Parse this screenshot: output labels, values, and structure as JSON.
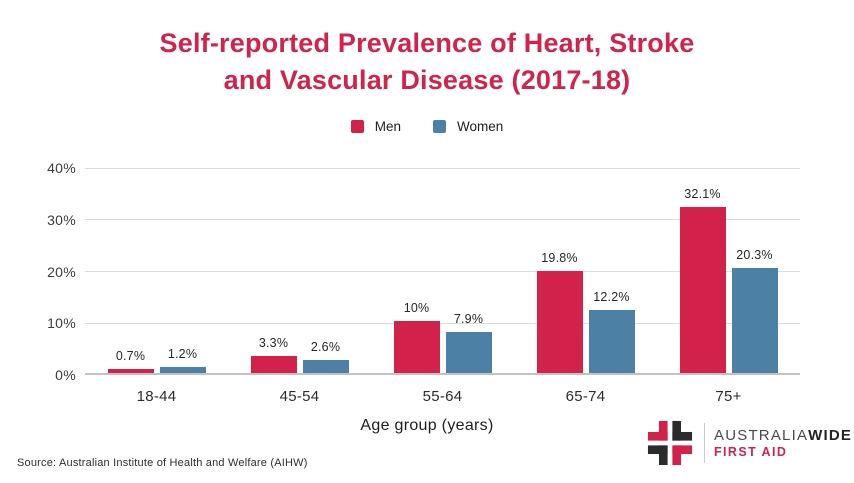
{
  "title": {
    "line1": "Self-reported Prevalence of Heart, Stroke",
    "line2": "and Vascular Disease (2017-18)"
  },
  "chart_data": {
    "type": "bar",
    "categories": [
      "18-44",
      "45-54",
      "55-64",
      "65-74",
      "75+"
    ],
    "series": [
      {
        "name": "Men",
        "color": "#d2224c",
        "values": [
          0.7,
          3.3,
          10,
          19.8,
          32.1
        ],
        "labels": [
          "0.7%",
          "3.3%",
          "10%",
          "19.8%",
          "32.1%"
        ]
      },
      {
        "name": "Women",
        "color": "#4d80a5",
        "values": [
          1.2,
          2.6,
          7.9,
          12.2,
          20.3
        ],
        "labels": [
          "1.2%",
          "2.6%",
          "7.9%",
          "12.2%",
          "20.3%"
        ]
      }
    ],
    "title": "Self-reported Prevalence of Heart, Stroke and Vascular Disease (2017-18)",
    "xlabel": "Age group (years)",
    "ylabel": "",
    "ylim": [
      0,
      40
    ],
    "yticks": [
      0,
      10,
      20,
      30,
      40
    ],
    "ytick_labels": [
      "0%",
      "10%",
      "20%",
      "30%",
      "40%"
    ],
    "grid": true,
    "legend_position": "top"
  },
  "source": "Source: Australian Institute of Health and Welfare (AIHW)",
  "logo": {
    "brand_part1": "AUSTRALIA",
    "brand_part2": "WIDE",
    "tagline": "FIRST AID"
  },
  "colors": {
    "title": "#d2234d",
    "men": "#d2224c",
    "women": "#4d80a5",
    "logo_red": "#d2224c",
    "logo_dark": "#2b2b2b",
    "tagline": "#d2234d",
    "grid": "#dcdcdc",
    "axis_line": "#c2c2c2"
  }
}
